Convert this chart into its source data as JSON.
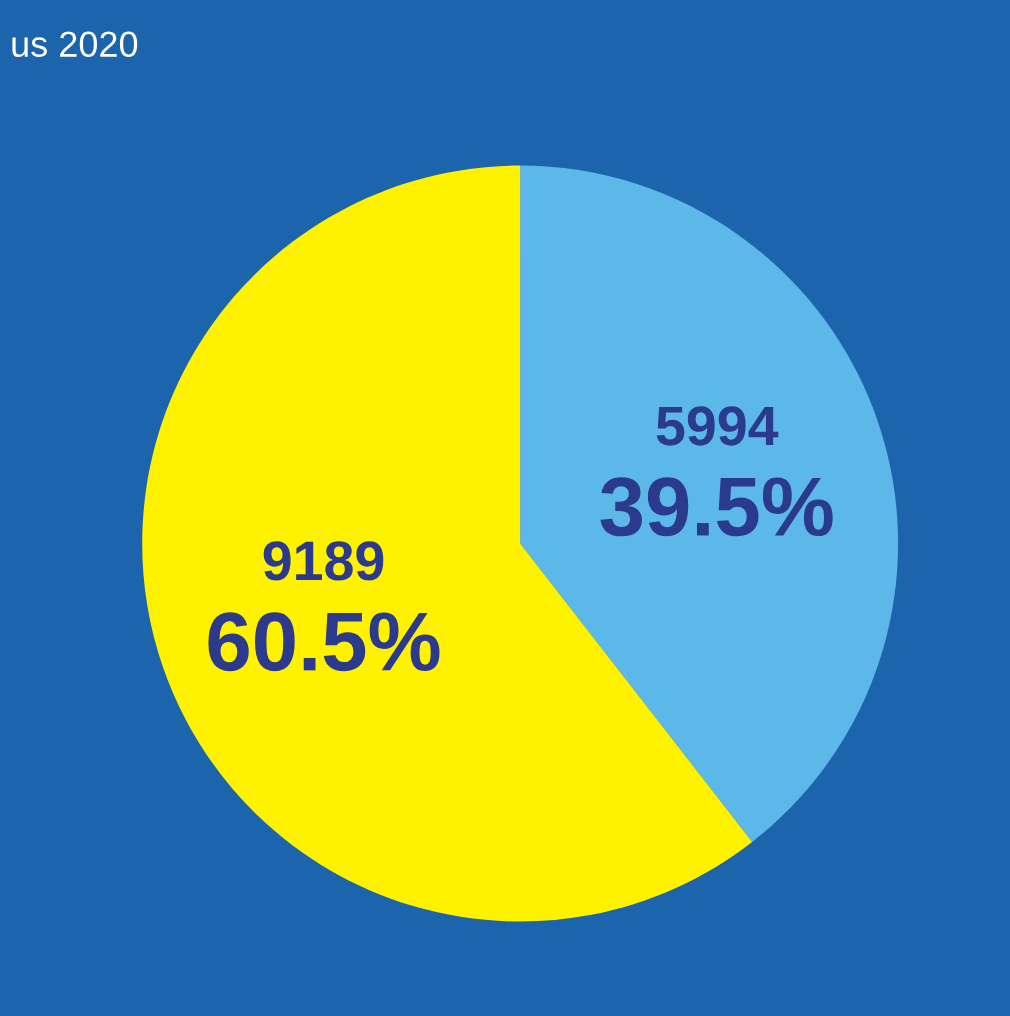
{
  "chart_data": {
    "type": "pie",
    "title": "us 2020",
    "categories": [
      null,
      null
    ],
    "values": [
      5994,
      9189
    ],
    "colors": [
      "#5cb8e8",
      "#fff200"
    ],
    "value_labels": [
      "5994\n39.5%",
      "9189\n60.5%"
    ]
  }
}
